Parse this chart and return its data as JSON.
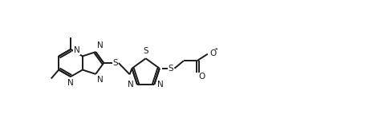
{
  "bg_color": "#ffffff",
  "line_color": "#1a1a1a",
  "line_width": 1.4,
  "font_size": 7.5,
  "figsize": [
    4.76,
    1.58
  ],
  "dpi": 100,
  "xlim": [
    0,
    10.0
  ],
  "ylim": [
    0,
    3.3
  ]
}
